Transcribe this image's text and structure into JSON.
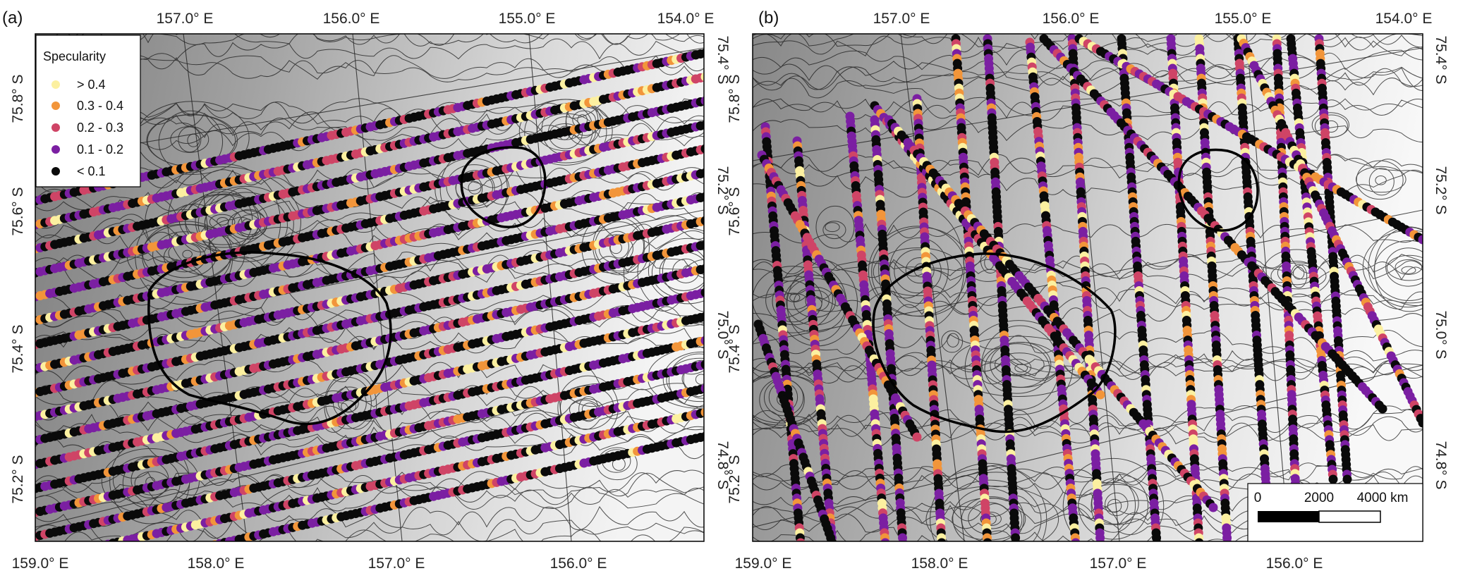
{
  "panels": [
    {
      "label": "(a)",
      "top_ticks": [
        "157.0° E",
        "156.0° E",
        "155.0° E",
        "154.0° E"
      ],
      "bottom_ticks": [
        "159.0° E",
        "158.0° E",
        "157.0° E",
        "156.0° E"
      ],
      "left_ticks": [
        "75.8° S",
        "75.6° S",
        "75.4° S",
        "75.2° S"
      ],
      "right_ticks": [
        "75.4° S",
        "75.2° S",
        "75.0° S",
        "74.8° S"
      ]
    },
    {
      "label": "(b)",
      "top_ticks": [
        "157.0° E",
        "156.0° E",
        "155.0° E",
        "154.0° E"
      ],
      "bottom_ticks": [
        "159.0° E",
        "158.0° E",
        "157.0° E",
        "156.0° E"
      ],
      "left_ticks": [
        "75.8° S",
        "75.6° S",
        "75.4° S",
        "75.2° S"
      ],
      "right_ticks": [
        "75.4° S",
        "75.2° S",
        "75.0° S",
        "74.8° S"
      ]
    }
  ],
  "legend": {
    "title": "Specularity",
    "items": [
      {
        "label": "> 0.4",
        "color": "#fcf0a0"
      },
      {
        "label": "0.3 - 0.4",
        "color": "#f2953a"
      },
      {
        "label": "0.2 - 0.3",
        "color": "#cf4466"
      },
      {
        "label": "0.1 - 0.2",
        "color": "#7b1fa2"
      },
      {
        "label": "< 0.1",
        "color": "#0a0a0a"
      }
    ]
  },
  "scalebar": {
    "labels": [
      "0",
      "2000",
      "4000 km"
    ]
  }
}
